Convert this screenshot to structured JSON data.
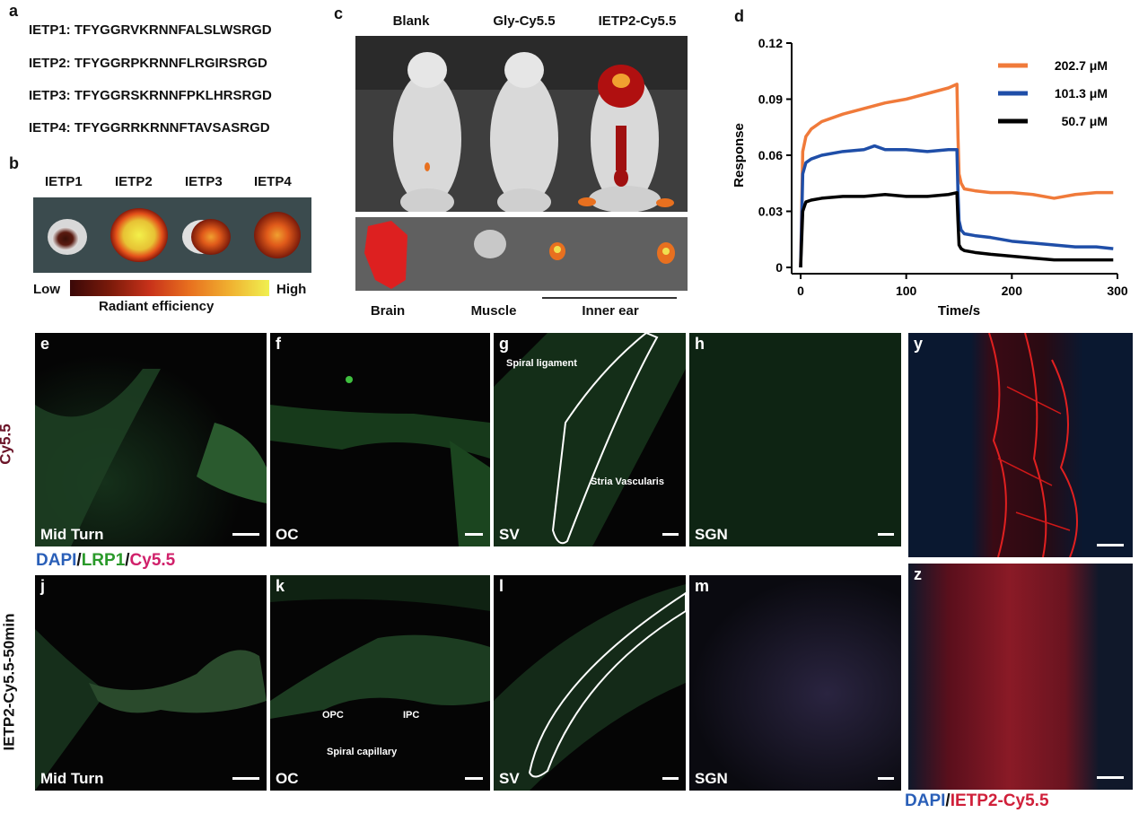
{
  "panel_a": {
    "letter": "a",
    "sequences": [
      "IETP1: TFYGGRVKRNNFALSLWSRGD",
      "IETP2: TFYGGRPKRNNFLRGIRSRGD",
      "IETP3: TFYGGRSKRNNFPKLHRSRGD",
      "IETP4: TFYGGRRKRNNFTAVSASRGD"
    ]
  },
  "panel_b": {
    "letter": "b",
    "labels": [
      "IETP1",
      "IETP2",
      "IETP3",
      "IETP4"
    ],
    "scale_low": "Low",
    "scale_high": "High",
    "scale_title": "Radiant efficiency"
  },
  "panel_c": {
    "letter": "c",
    "columns": [
      "Blank",
      "Gly-Cy5.5",
      "IETP2-Cy5.5"
    ],
    "organs": [
      "Brain",
      "Muscle",
      "Inner ear"
    ]
  },
  "panel_d": {
    "letter": "d"
  },
  "chart_data": {
    "type": "line",
    "xlabel": "Time/s",
    "ylabel": "Response",
    "xlim": [
      0,
      300
    ],
    "ylim": [
      0,
      0.12
    ],
    "xticks": [
      0,
      100,
      200,
      300
    ],
    "yticks": [
      0,
      0.03,
      0.06,
      0.09,
      0.12
    ],
    "ytick_labels": [
      "0",
      "0.03",
      "0.06",
      "0.09",
      "0.12"
    ],
    "legend_position": "top-right",
    "colors": [
      "#f07a3a",
      "#1f4ea8",
      "#000000"
    ],
    "series": [
      {
        "name": "202.7 μM",
        "x": [
          0,
          2,
          5,
          10,
          20,
          40,
          60,
          80,
          100,
          120,
          140,
          148,
          149,
          150,
          152,
          155,
          165,
          180,
          200,
          220,
          240,
          260,
          280,
          296
        ],
        "y": [
          0,
          0.062,
          0.07,
          0.074,
          0.078,
          0.082,
          0.085,
          0.088,
          0.09,
          0.093,
          0.096,
          0.098,
          0.07,
          0.05,
          0.045,
          0.042,
          0.041,
          0.04,
          0.04,
          0.039,
          0.037,
          0.039,
          0.04,
          0.04
        ]
      },
      {
        "name": "101.3 μM",
        "x": [
          0,
          2,
          5,
          10,
          20,
          40,
          60,
          70,
          80,
          100,
          120,
          140,
          148,
          149,
          150,
          152,
          155,
          165,
          180,
          200,
          220,
          240,
          260,
          280,
          296
        ],
        "y": [
          0,
          0.05,
          0.056,
          0.058,
          0.06,
          0.062,
          0.063,
          0.065,
          0.063,
          0.063,
          0.062,
          0.063,
          0.063,
          0.04,
          0.025,
          0.02,
          0.018,
          0.017,
          0.016,
          0.014,
          0.013,
          0.012,
          0.011,
          0.011,
          0.01
        ]
      },
      {
        "name": "50.7 μM",
        "x": [
          0,
          2,
          5,
          10,
          20,
          40,
          60,
          80,
          100,
          120,
          140,
          148,
          149,
          150,
          152,
          155,
          165,
          180,
          200,
          220,
          240,
          260,
          280,
          296
        ],
        "y": [
          0,
          0.03,
          0.035,
          0.036,
          0.037,
          0.038,
          0.038,
          0.039,
          0.038,
          0.038,
          0.039,
          0.04,
          0.025,
          0.012,
          0.01,
          0.009,
          0.008,
          0.007,
          0.006,
          0.005,
          0.004,
          0.004,
          0.004,
          0.004
        ]
      }
    ]
  },
  "row1": {
    "side_label": "Cy5.5",
    "tiles": [
      {
        "letter": "e",
        "label": "Mid Turn"
      },
      {
        "letter": "f",
        "label": "OC"
      },
      {
        "letter": "g",
        "label": "SV"
      },
      {
        "letter": "h",
        "label": "SGN"
      },
      {
        "letter": "y",
        "label": ""
      }
    ],
    "annotations": {
      "spiral_ligament": "Spiral ligament",
      "stria": "Stria Vascularis"
    }
  },
  "stain_legend_1": {
    "dapi": "DAPI",
    "sep1": "/",
    "lrp1": "LRP1",
    "sep2": "/",
    "cy": "Cy5.5"
  },
  "row2": {
    "side_label": "IETP2-Cy5.5-50min",
    "tiles": [
      {
        "letter": "j",
        "label": "Mid Turn"
      },
      {
        "letter": "k",
        "label": "OC"
      },
      {
        "letter": "l",
        "label": "SV"
      },
      {
        "letter": "m",
        "label": "SGN"
      },
      {
        "letter": "z",
        "label": ""
      }
    ],
    "annotations": {
      "opc": "OPC",
      "ipc": "IPC",
      "capillary": "Spiral capillary"
    }
  },
  "stain_legend_2": {
    "dapi": "DAPI",
    "sep": "/",
    "ietp": "IETP2-Cy5.5"
  }
}
